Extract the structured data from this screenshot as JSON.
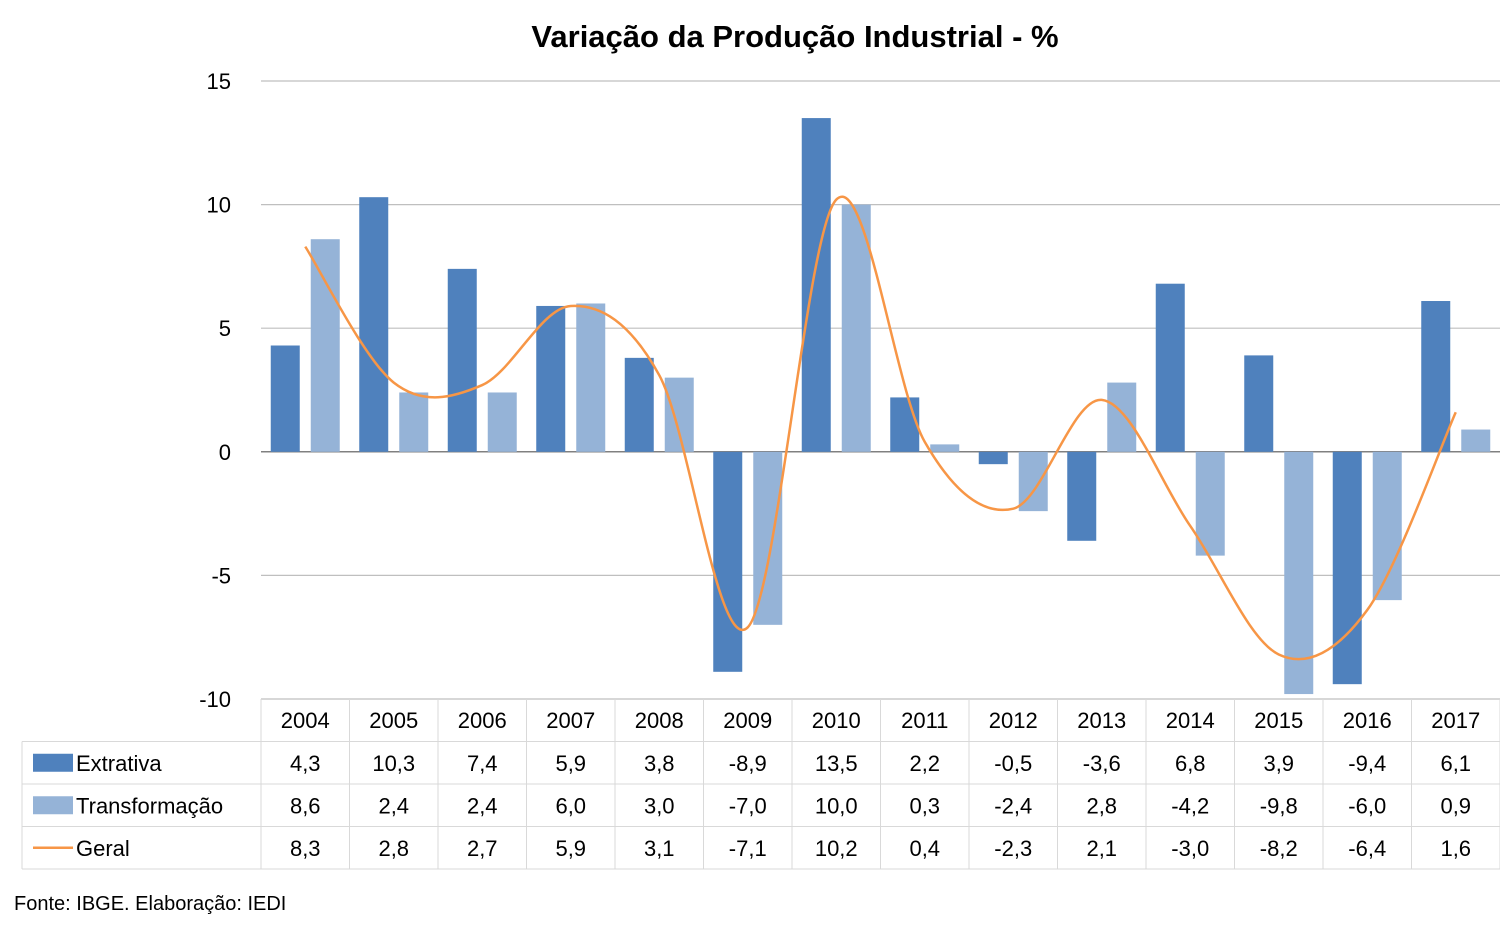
{
  "chart_data": {
    "type": "bar",
    "title": "Variação da Produção Industrial - %",
    "categories": [
      "2004",
      "2005",
      "2006",
      "2007",
      "2008",
      "2009",
      "2010",
      "2011",
      "2012",
      "2013",
      "2014",
      "2015",
      "2016",
      "2017"
    ],
    "ylim": [
      -10,
      15
    ],
    "y_ticks": [
      15,
      10,
      5,
      0,
      -5,
      -10
    ],
    "grid": true,
    "legend_placement": "data-table-left",
    "series": [
      {
        "name": "Extrativa",
        "kind": "bar",
        "color": "#4f81bd",
        "values": [
          4.3,
          10.3,
          7.4,
          5.9,
          3.8,
          -8.9,
          13.5,
          2.2,
          -0.5,
          -3.6,
          6.8,
          3.9,
          -9.4,
          6.1
        ],
        "labels": [
          "4,3",
          "10,3",
          "7,4",
          "5,9",
          "3,8",
          "-8,9",
          "13,5",
          "2,2",
          "-0,5",
          "-3,6",
          "6,8",
          "3,9",
          "-9,4",
          "6,1"
        ]
      },
      {
        "name": "Transformação",
        "kind": "bar",
        "color": "#95b3d7",
        "values": [
          8.6,
          2.4,
          2.4,
          6.0,
          3.0,
          -7.0,
          10.0,
          0.3,
          -2.4,
          2.8,
          -4.2,
          -9.8,
          -6.0,
          0.9
        ],
        "labels": [
          "8,6",
          "2,4",
          "2,4",
          "6,0",
          "3,0",
          "-7,0",
          "10,0",
          "0,3",
          "-2,4",
          "2,8",
          "-4,2",
          "-9,8",
          "-6,0",
          "0,9"
        ]
      },
      {
        "name": "Geral",
        "kind": "line",
        "color": "#f79646",
        "values": [
          8.3,
          2.8,
          2.7,
          5.9,
          3.1,
          -7.1,
          10.2,
          0.4,
          -2.3,
          2.1,
          -3.0,
          -8.2,
          -6.4,
          1.6
        ],
        "labels": [
          "8,3",
          "2,8",
          "2,7",
          "5,9",
          "3,1",
          "-7,1",
          "10,2",
          "0,4",
          "-2,3",
          "2,1",
          "-3,0",
          "-8,2",
          "-6,4",
          "1,6"
        ]
      }
    ]
  },
  "source": "Fonte: IBGE. Elaboração: IEDI"
}
